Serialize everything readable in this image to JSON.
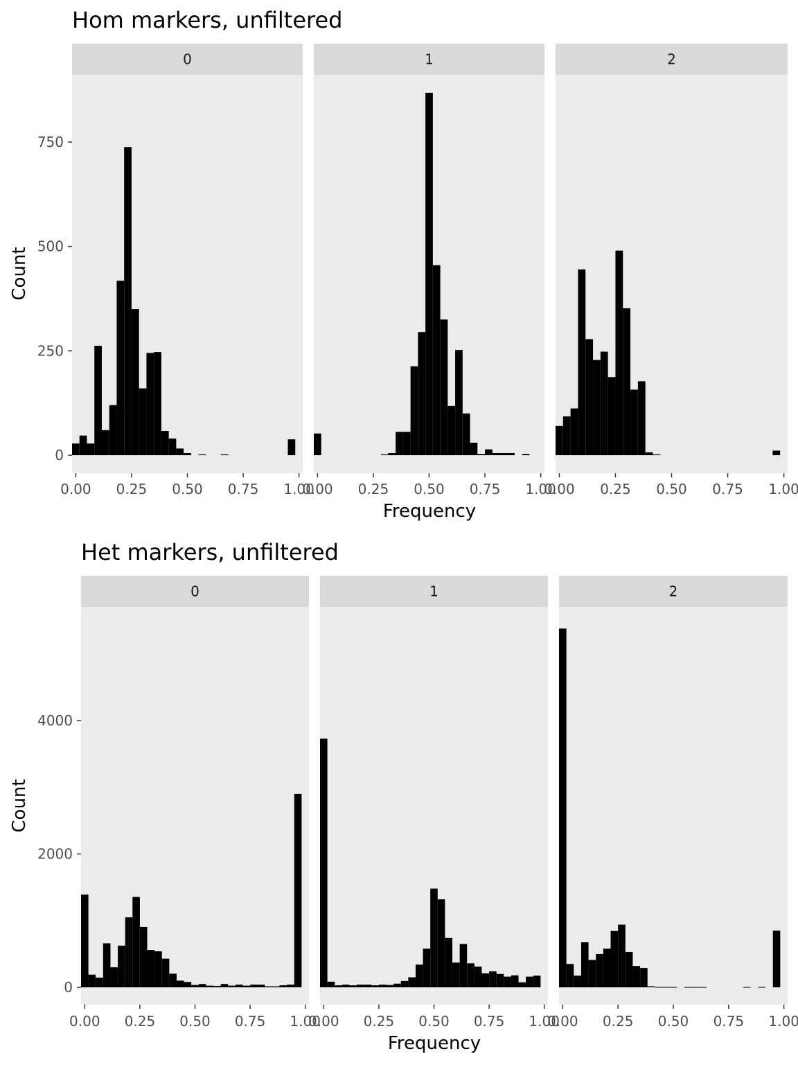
{
  "chart_data": [
    {
      "type": "bar",
      "title": "Hom markers, unfiltered",
      "xlabel": "Frequency",
      "ylabel": "Count",
      "xlim": [
        -0.0167,
        1.0167
      ],
      "ylim": [
        0,
        900
      ],
      "xticks": [
        0,
        0.25,
        0.5,
        0.75,
        1
      ],
      "xtick_labels": [
        "0.00",
        "0.25",
        "0.50",
        "0.75",
        "1.00"
      ],
      "yticks": [
        0,
        250,
        500,
        750
      ],
      "ytick_labels": [
        "0",
        "250",
        "500",
        "750"
      ],
      "bin_width": 0.0333,
      "grid": false,
      "facets": [
        {
          "label": "0",
          "bins": [
            {
              "x": 0.0,
              "count": 28
            },
            {
              "x": 0.0333,
              "count": 47
            },
            {
              "x": 0.0667,
              "count": 28
            },
            {
              "x": 0.1,
              "count": 262
            },
            {
              "x": 0.1333,
              "count": 60
            },
            {
              "x": 0.1667,
              "count": 120
            },
            {
              "x": 0.2,
              "count": 418
            },
            {
              "x": 0.2333,
              "count": 738
            },
            {
              "x": 0.2667,
              "count": 350
            },
            {
              "x": 0.3,
              "count": 160
            },
            {
              "x": 0.3333,
              "count": 245
            },
            {
              "x": 0.3667,
              "count": 247
            },
            {
              "x": 0.4,
              "count": 58
            },
            {
              "x": 0.4333,
              "count": 40
            },
            {
              "x": 0.4667,
              "count": 16
            },
            {
              "x": 0.5,
              "count": 5
            },
            {
              "x": 0.5333,
              "count": 0
            },
            {
              "x": 0.5667,
              "count": 2
            },
            {
              "x": 0.6,
              "count": 0
            },
            {
              "x": 0.6333,
              "count": 0
            },
            {
              "x": 0.6667,
              "count": 2
            },
            {
              "x": 0.7,
              "count": 0
            },
            {
              "x": 0.7333,
              "count": 0
            },
            {
              "x": 0.7667,
              "count": 0
            },
            {
              "x": 0.8,
              "count": 0
            },
            {
              "x": 0.8333,
              "count": 0
            },
            {
              "x": 0.8667,
              "count": 0
            },
            {
              "x": 0.9,
              "count": 0
            },
            {
              "x": 0.9333,
              "count": 0
            },
            {
              "x": 0.9667,
              "count": 38
            }
          ]
        },
        {
          "label": "1",
          "bins": [
            {
              "x": 0.0,
              "count": 52
            },
            {
              "x": 0.0333,
              "count": 0
            },
            {
              "x": 0.0667,
              "count": 0
            },
            {
              "x": 0.1,
              "count": 0
            },
            {
              "x": 0.1333,
              "count": 0
            },
            {
              "x": 0.1667,
              "count": 0
            },
            {
              "x": 0.2,
              "count": 0
            },
            {
              "x": 0.2333,
              "count": 0
            },
            {
              "x": 0.2667,
              "count": 0
            },
            {
              "x": 0.3,
              "count": 2
            },
            {
              "x": 0.3333,
              "count": 5
            },
            {
              "x": 0.3667,
              "count": 56
            },
            {
              "x": 0.4,
              "count": 56
            },
            {
              "x": 0.4333,
              "count": 213
            },
            {
              "x": 0.4667,
              "count": 295
            },
            {
              "x": 0.5,
              "count": 868
            },
            {
              "x": 0.5333,
              "count": 455
            },
            {
              "x": 0.5667,
              "count": 325
            },
            {
              "x": 0.6,
              "count": 118
            },
            {
              "x": 0.6333,
              "count": 252
            },
            {
              "x": 0.6667,
              "count": 100
            },
            {
              "x": 0.7,
              "count": 30
            },
            {
              "x": 0.7333,
              "count": 3
            },
            {
              "x": 0.7667,
              "count": 14
            },
            {
              "x": 0.8,
              "count": 5
            },
            {
              "x": 0.8333,
              "count": 5
            },
            {
              "x": 0.8667,
              "count": 5
            },
            {
              "x": 0.9,
              "count": 0
            },
            {
              "x": 0.9333,
              "count": 3
            },
            {
              "x": 0.9667,
              "count": 0
            }
          ]
        },
        {
          "label": "2",
          "bins": [
            {
              "x": 0.0,
              "count": 70
            },
            {
              "x": 0.0333,
              "count": 93
            },
            {
              "x": 0.0667,
              "count": 112
            },
            {
              "x": 0.1,
              "count": 445
            },
            {
              "x": 0.1333,
              "count": 278
            },
            {
              "x": 0.1667,
              "count": 228
            },
            {
              "x": 0.2,
              "count": 248
            },
            {
              "x": 0.2333,
              "count": 187
            },
            {
              "x": 0.2667,
              "count": 490
            },
            {
              "x": 0.3,
              "count": 352
            },
            {
              "x": 0.3333,
              "count": 157
            },
            {
              "x": 0.3667,
              "count": 177
            },
            {
              "x": 0.4,
              "count": 7
            },
            {
              "x": 0.4333,
              "count": 2
            },
            {
              "x": 0.4667,
              "count": 0
            },
            {
              "x": 0.5,
              "count": 0
            },
            {
              "x": 0.5333,
              "count": 0
            },
            {
              "x": 0.5667,
              "count": 0
            },
            {
              "x": 0.6,
              "count": 0
            },
            {
              "x": 0.6333,
              "count": 0
            },
            {
              "x": 0.6667,
              "count": 0
            },
            {
              "x": 0.7,
              "count": 0
            },
            {
              "x": 0.7333,
              "count": 0
            },
            {
              "x": 0.7667,
              "count": 0
            },
            {
              "x": 0.8,
              "count": 0
            },
            {
              "x": 0.8333,
              "count": 0
            },
            {
              "x": 0.8667,
              "count": 0
            },
            {
              "x": 0.9,
              "count": 0
            },
            {
              "x": 0.9333,
              "count": 0
            },
            {
              "x": 0.9667,
              "count": 11
            }
          ]
        }
      ]
    },
    {
      "type": "bar",
      "title": "Het markers, unfiltered",
      "xlabel": "Frequency",
      "ylabel": "Count",
      "xlim": [
        -0.0167,
        1.0167
      ],
      "ylim": [
        0,
        5600
      ],
      "xticks": [
        0,
        0.25,
        0.5,
        0.75,
        1
      ],
      "xtick_labels": [
        "0.00",
        "0.25",
        "0.50",
        "0.75",
        "1.00"
      ],
      "yticks": [
        0,
        2000,
        4000
      ],
      "ytick_labels": [
        "0",
        "2000",
        "4000"
      ],
      "bin_width": 0.0333,
      "grid": false,
      "facets": [
        {
          "label": "0",
          "bins": [
            {
              "x": 0.0,
              "count": 1390
            },
            {
              "x": 0.0333,
              "count": 190
            },
            {
              "x": 0.0667,
              "count": 145
            },
            {
              "x": 0.1,
              "count": 660
            },
            {
              "x": 0.1333,
              "count": 300
            },
            {
              "x": 0.1667,
              "count": 625
            },
            {
              "x": 0.2,
              "count": 1050
            },
            {
              "x": 0.2333,
              "count": 1355
            },
            {
              "x": 0.2667,
              "count": 905
            },
            {
              "x": 0.3,
              "count": 560
            },
            {
              "x": 0.3333,
              "count": 540
            },
            {
              "x": 0.3667,
              "count": 430
            },
            {
              "x": 0.4,
              "count": 205
            },
            {
              "x": 0.4333,
              "count": 100
            },
            {
              "x": 0.4667,
              "count": 80
            },
            {
              "x": 0.5,
              "count": 35
            },
            {
              "x": 0.5333,
              "count": 50
            },
            {
              "x": 0.5667,
              "count": 25
            },
            {
              "x": 0.6,
              "count": 20
            },
            {
              "x": 0.6333,
              "count": 50
            },
            {
              "x": 0.6667,
              "count": 25
            },
            {
              "x": 0.7,
              "count": 40
            },
            {
              "x": 0.7333,
              "count": 25
            },
            {
              "x": 0.7667,
              "count": 40
            },
            {
              "x": 0.8,
              "count": 40
            },
            {
              "x": 0.8333,
              "count": 15
            },
            {
              "x": 0.8667,
              "count": 15
            },
            {
              "x": 0.9,
              "count": 30
            },
            {
              "x": 0.9333,
              "count": 40
            },
            {
              "x": 0.9667,
              "count": 2900
            }
          ]
        },
        {
          "label": "1",
          "bins": [
            {
              "x": 0.0,
              "count": 3730
            },
            {
              "x": 0.0333,
              "count": 85
            },
            {
              "x": 0.0667,
              "count": 30
            },
            {
              "x": 0.1,
              "count": 40
            },
            {
              "x": 0.1333,
              "count": 30
            },
            {
              "x": 0.1667,
              "count": 40
            },
            {
              "x": 0.2,
              "count": 40
            },
            {
              "x": 0.2333,
              "count": 30
            },
            {
              "x": 0.2667,
              "count": 40
            },
            {
              "x": 0.3,
              "count": 35
            },
            {
              "x": 0.3333,
              "count": 55
            },
            {
              "x": 0.3667,
              "count": 95
            },
            {
              "x": 0.4,
              "count": 150
            },
            {
              "x": 0.4333,
              "count": 340
            },
            {
              "x": 0.4667,
              "count": 580
            },
            {
              "x": 0.5,
              "count": 1480
            },
            {
              "x": 0.5333,
              "count": 1320
            },
            {
              "x": 0.5667,
              "count": 740
            },
            {
              "x": 0.6,
              "count": 370
            },
            {
              "x": 0.6333,
              "count": 650
            },
            {
              "x": 0.6667,
              "count": 360
            },
            {
              "x": 0.7,
              "count": 310
            },
            {
              "x": 0.7333,
              "count": 210
            },
            {
              "x": 0.7667,
              "count": 240
            },
            {
              "x": 0.8,
              "count": 200
            },
            {
              "x": 0.8333,
              "count": 160
            },
            {
              "x": 0.8667,
              "count": 180
            },
            {
              "x": 0.9,
              "count": 75
            },
            {
              "x": 0.9333,
              "count": 160
            },
            {
              "x": 0.9667,
              "count": 175
            }
          ]
        },
        {
          "label": "2",
          "bins": [
            {
              "x": 0.0,
              "count": 5380
            },
            {
              "x": 0.0333,
              "count": 350
            },
            {
              "x": 0.0667,
              "count": 175
            },
            {
              "x": 0.1,
              "count": 675
            },
            {
              "x": 0.1333,
              "count": 410
            },
            {
              "x": 0.1667,
              "count": 500
            },
            {
              "x": 0.2,
              "count": 580
            },
            {
              "x": 0.2333,
              "count": 845
            },
            {
              "x": 0.2667,
              "count": 940
            },
            {
              "x": 0.3,
              "count": 530
            },
            {
              "x": 0.3333,
              "count": 320
            },
            {
              "x": 0.3667,
              "count": 290
            },
            {
              "x": 0.4,
              "count": 15
            },
            {
              "x": 0.4333,
              "count": 5
            },
            {
              "x": 0.4667,
              "count": 5
            },
            {
              "x": 0.5,
              "count": 5
            },
            {
              "x": 0.5333,
              "count": 0
            },
            {
              "x": 0.5667,
              "count": 5
            },
            {
              "x": 0.6,
              "count": 5
            },
            {
              "x": 0.6333,
              "count": 5
            },
            {
              "x": 0.6667,
              "count": 0
            },
            {
              "x": 0.7,
              "count": 0
            },
            {
              "x": 0.7333,
              "count": 0
            },
            {
              "x": 0.7667,
              "count": 0
            },
            {
              "x": 0.8,
              "count": 0
            },
            {
              "x": 0.8333,
              "count": 5
            },
            {
              "x": 0.8667,
              "count": 0
            },
            {
              "x": 0.9,
              "count": 5
            },
            {
              "x": 0.9333,
              "count": 0
            },
            {
              "x": 0.9667,
              "count": 850
            }
          ]
        }
      ]
    }
  ],
  "colors": {
    "panel_background": "#ebebeb",
    "strip_background": "#d9d9d9",
    "bar_fill": "#000000",
    "tick_color": "#333333",
    "tick_label_color": "#4d4d4d"
  }
}
